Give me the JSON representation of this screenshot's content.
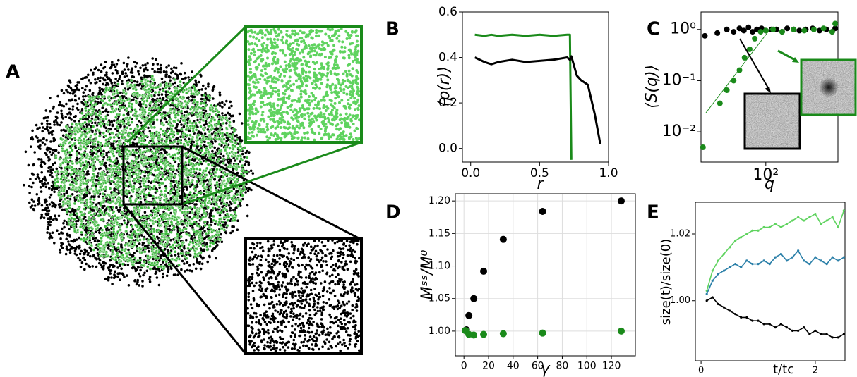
{
  "panel_labels": [
    "A",
    "B",
    "C",
    "D",
    "E"
  ],
  "chart_data": [
    {
      "type": "line",
      "xlabel": "r",
      "ylabel": "⟨ρ(r)⟩",
      "xlim": [
        -0.06,
        1.0
      ],
      "ylim": [
        -0.06,
        0.6
      ],
      "xticks": [
        {
          "value": 0,
          "label": "0.0"
        },
        0.5,
        {
          "value": 1,
          "label": "1.0"
        }
      ],
      "yticks": [
        {
          "value": 0,
          "label": "0.0"
        },
        0.2,
        0.4,
        0.6
      ],
      "x": [
        0.03,
        0.1,
        0.15,
        0.2,
        0.3,
        0.4,
        0.5,
        0.6,
        0.7,
        0.72,
        0.73,
        0.77,
        0.8,
        0.85,
        0.9,
        0.94
      ],
      "series": [
        {
          "color": "#1a8a1a",
          "values": [
            0.5,
            0.495,
            0.5,
            0.495,
            0.5,
            0.495,
            0.5,
            0.495,
            0.5,
            0.5,
            -0.05,
            null,
            null,
            null,
            null,
            null
          ]
        },
        {
          "color": "#000000",
          "values": [
            0.4,
            0.38,
            0.37,
            0.38,
            0.39,
            0.38,
            0.385,
            0.39,
            0.4,
            0.39,
            0.405,
            0.32,
            0.3,
            0.28,
            0.15,
            0.02
          ]
        }
      ]
    },
    {
      "type": "scatter",
      "xlabel": "q",
      "ylabel": "⟨S(q)⟩",
      "xlog": true,
      "ylog": true,
      "xlim": [
        20,
        600
      ],
      "ylim": [
        0.00257,
        2.19
      ],
      "xticks": [
        {
          "value": 100,
          "label": "10²"
        }
      ],
      "yticks": [
        {
          "value": 1,
          "label": "10⁰"
        },
        {
          "value": 0.1,
          "label": "10⁻¹"
        },
        {
          "value": 0.01,
          "label": "10⁻²"
        }
      ],
      "series": [
        {
          "color": "#000000",
          "x": [
            22,
            30,
            38,
            45,
            52,
            58,
            65,
            72,
            80,
            90,
            100,
            115,
            130,
            150,
            170,
            200,
            230,
            270,
            320,
            380,
            450,
            520,
            560
          ],
          "values": [
            0.75,
            0.85,
            1.0,
            0.9,
            1.05,
            0.95,
            1.1,
            0.9,
            1.0,
            1.05,
            0.95,
            1.0,
            1.0,
            0.9,
            1.05,
            1.0,
            0.95,
            1.0,
            1.05,
            0.95,
            1.0,
            0.9,
            1.05
          ]
        },
        {
          "color": "#1a8a1a",
          "x": [
            21,
            32,
            38,
            45,
            52,
            59,
            67,
            76,
            88,
            100,
            120,
            150,
            200,
            260,
            330,
            420,
            520,
            560
          ],
          "values": [
            0.005,
            0.036,
            0.065,
            0.1,
            0.16,
            0.28,
            0.41,
            0.66,
            0.9,
            0.95,
            1.0,
            0.9,
            1.0,
            0.95,
            1.0,
            1.05,
            0.9,
            1.3
          ]
        }
      ]
    },
    {
      "type": "scatter",
      "xlabel": "γ",
      "ylabel": "Mˢˢ/M⁰",
      "grid": true,
      "xlim": [
        -7,
        139.5
      ],
      "ylim": [
        0.962,
        1.211
      ],
      "xticks": [
        0,
        20,
        40,
        60,
        80,
        100,
        120
      ],
      "yticks": [
        {
          "value": 1,
          "label": "1.00"
        },
        1.05,
        {
          "value": 1.1,
          "label": "1.10"
        },
        1.15,
        {
          "value": 1.2,
          "label": "1.20"
        }
      ],
      "series": [
        {
          "color": "#000000",
          "x": [
            2,
            4,
            8,
            16,
            32,
            64,
            128
          ],
          "values": [
            1.002,
            1.024,
            1.05,
            1.092,
            1.141,
            1.184,
            1.2
          ]
        },
        {
          "color": "#1a8a1a",
          "x": [
            1,
            2,
            4,
            8,
            16,
            32,
            64,
            128
          ],
          "values": [
            1.001,
            1.0,
            0.995,
            0.994,
            0.995,
            0.996,
            0.997,
            1.0
          ]
        }
      ]
    },
    {
      "type": "line",
      "markers": true,
      "xlabel": "t/tc",
      "ylabel": "size(t)/size(0)",
      "xlim": [
        -0.1,
        2.52
      ],
      "ylim": [
        0.982,
        1.0295
      ],
      "xticks": [
        0,
        2
      ],
      "yticks": [
        {
          "value": 1,
          "label": "1.00"
        },
        1.02
      ],
      "x": [
        0.1,
        0.2,
        0.3,
        0.4,
        0.5,
        0.6,
        0.7,
        0.8,
        0.9,
        1.0,
        1.1,
        1.2,
        1.3,
        1.4,
        1.5,
        1.6,
        1.7,
        1.8,
        1.9,
        2.0,
        2.1,
        2.2,
        2.3,
        2.4,
        2.5
      ],
      "series": [
        {
          "color": "#5fd35f",
          "values": [
            1.003,
            1.009,
            1.012,
            1.014,
            1.016,
            1.018,
            1.019,
            1.02,
            1.021,
            1.021,
            1.022,
            1.022,
            1.023,
            1.022,
            1.023,
            1.024,
            1.025,
            1.024,
            1.025,
            1.026,
            1.023,
            1.024,
            1.025,
            1.022,
            1.027
          ]
        },
        {
          "color": "#2a7fa8",
          "values": [
            1.002,
            1.006,
            1.008,
            1.009,
            1.01,
            1.011,
            1.01,
            1.012,
            1.011,
            1.011,
            1.012,
            1.011,
            1.013,
            1.014,
            1.012,
            1.013,
            1.015,
            1.012,
            1.011,
            1.013,
            1.012,
            1.011,
            1.013,
            1.012,
            1.013
          ]
        },
        {
          "color": "#000000",
          "values": [
            1.0,
            1.001,
            0.999,
            0.998,
            0.997,
            0.996,
            0.995,
            0.995,
            0.994,
            0.994,
            0.993,
            0.993,
            0.992,
            0.993,
            0.992,
            0.991,
            0.991,
            0.992,
            0.99,
            0.991,
            0.99,
            0.99,
            0.989,
            0.989,
            0.99
          ]
        }
      ]
    }
  ]
}
